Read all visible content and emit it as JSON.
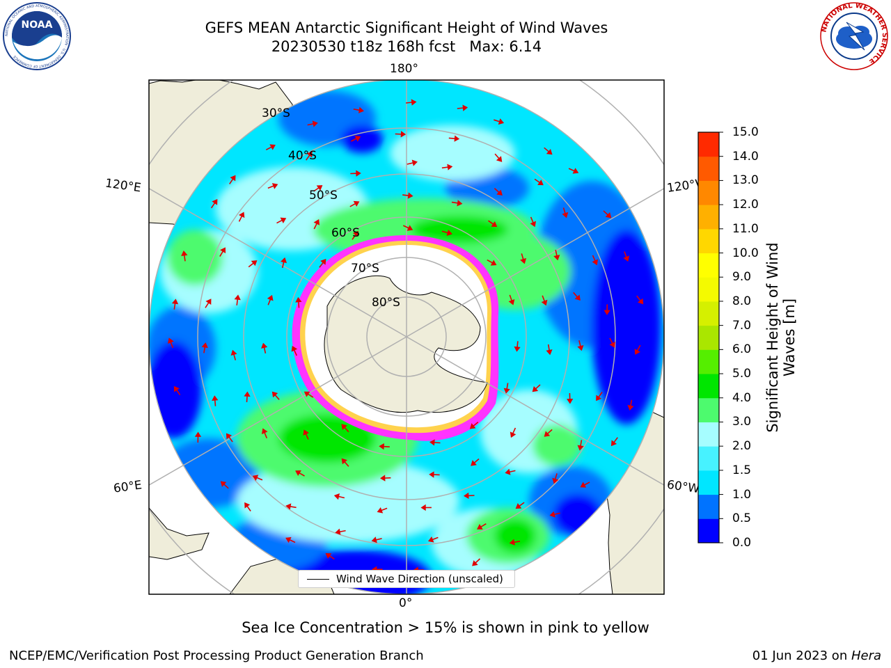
{
  "header": {
    "title_line1": "GEFS MEAN Antarctic Significant Height of Wind Waves",
    "title_line2": "20230530 t18z 168h fcst   Max: 6.14"
  },
  "logos": {
    "left": {
      "icon": "noaa-logo-icon",
      "text": "NOAA",
      "ring_text": "NATIONAL OCEANIC AND ATMOSPHERIC ADMINISTRATION · U.S. DEPARTMENT OF COMMERCE"
    },
    "right": {
      "icon": "nws-logo-icon",
      "ring_text": "NATIONAL WEATHER SERVICE"
    }
  },
  "map": {
    "projection": "south-polar-stereographic",
    "longitude_labels": {
      "top": "180°",
      "bottom": "0°",
      "left_upper": "120°E",
      "left_lower": "60°E",
      "right_upper": "120°W",
      "right_lower": "60°W"
    },
    "latitude_labels": [
      "30°S",
      "40°S",
      "50°S",
      "60°S",
      "70°S",
      "80°S"
    ],
    "colors": {
      "land": "#efedda",
      "ocean_fill_levels": [
        "#0000ff",
        "#0074ff",
        "#00e6ff",
        "#4cf4ff",
        "#a6fdff",
        "#4dfa6e",
        "#00e600",
        "#55ee00",
        "#aae600",
        "#d5f000",
        "#eef800",
        "#ffe600",
        "#ffbf00",
        "#ff9200",
        "#ff6a00",
        "#ff3900",
        "#ff0000"
      ],
      "sea_ice": "#ff33ff",
      "arrows": "#ff0000"
    }
  },
  "legend": {
    "label": "Wind Wave Direction (unscaled)"
  },
  "colorbar": {
    "title": "Significant Height of Wind Waves [m]",
    "ticks": [
      "0.0",
      "0.5",
      "1.0",
      "1.5",
      "2.0",
      "3.0",
      "4.0",
      "5.0",
      "6.0",
      "7.0",
      "8.0",
      "9.0",
      "10.0",
      "11.0",
      "12.0",
      "13.0",
      "14.0",
      "15.0"
    ],
    "colors": [
      "#0000ff",
      "#0073ff",
      "#00e6ff",
      "#47f2ff",
      "#a6fdff",
      "#4dfa6e",
      "#00e600",
      "#55ee00",
      "#aae600",
      "#d5f000",
      "#f4fa00",
      "#ffff00",
      "#ffd700",
      "#ffb000",
      "#ff8800",
      "#ff5a00",
      "#ff2a00"
    ]
  },
  "caption": "Sea Ice Concentration > 15% is shown in pink to yellow",
  "footer": {
    "left": "NCEP/EMC/Verification Post Processing Product Generation Branch",
    "right_date": "01 Jun 2023 on ",
    "right_host": "Hera"
  }
}
